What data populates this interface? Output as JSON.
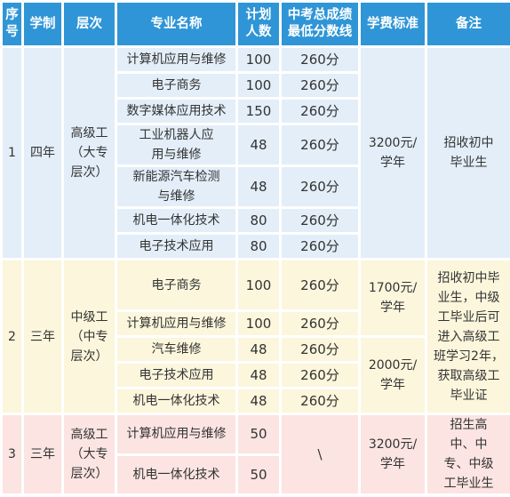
{
  "headers": [
    "序号",
    "学制",
    "层次",
    "专业名称",
    "计划人数",
    "中考总成绩最低分数线",
    "学费标准",
    "备注"
  ],
  "groups": [
    {
      "no": "1",
      "duration": "四年",
      "level": "高级工（大专层次）",
      "fee": "3200元/学年",
      "note": "招收初中毕业生",
      "rows": [
        {
          "major": "计算机应用与维修",
          "plan": "100",
          "score": "260分"
        },
        {
          "major": "电子商务",
          "plan": "100",
          "score": "260分"
        },
        {
          "major": "数字媒体应用技术",
          "plan": "150",
          "score": "260分"
        },
        {
          "major": "工业机器人应用与维修",
          "plan": "48",
          "score": "260分"
        },
        {
          "major": "新能源汽车检测与维修",
          "plan": "48",
          "score": "260分"
        },
        {
          "major": "机电一体化技术",
          "plan": "80",
          "score": "260分"
        },
        {
          "major": "电子技术应用",
          "plan": "80",
          "score": "260分"
        }
      ]
    },
    {
      "no": "2",
      "duration": "三年",
      "level": "中级工（中专层次）",
      "fee_a": "1700元/学年",
      "fee_b": "2000元/学年",
      "note": "招收初中毕业生，中级工毕业后可进入高级工班学习2年，获取高级工毕业证",
      "rows": [
        {
          "major": "电子商务",
          "plan": "100",
          "score": "260分"
        },
        {
          "major": "计算机应用与维修",
          "plan": "100",
          "score": "260分"
        },
        {
          "major": "汽车维修",
          "plan": "48",
          "score": "260分"
        },
        {
          "major": "电子技术应用",
          "plan": "48",
          "score": "260分"
        },
        {
          "major": "机电一体化技术",
          "plan": "48",
          "score": "260分"
        }
      ]
    },
    {
      "no": "3",
      "duration": "三年",
      "level": "高级工（大专层次）",
      "score": "\\",
      "fee": "3200元/学年",
      "note": "招生高中、中专、中级工毕业生",
      "rows": [
        {
          "major": "计算机应用与维修",
          "plan": "50"
        },
        {
          "major": "机电一体化技术",
          "plan": "50"
        }
      ]
    }
  ]
}
